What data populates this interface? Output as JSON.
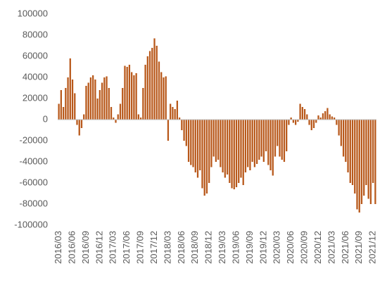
{
  "chart_data": {
    "type": "bar",
    "color": "#b8581a",
    "categories": [
      "2016/03",
      null,
      null,
      null,
      null,
      null,
      "2016/06",
      null,
      null,
      null,
      null,
      null,
      "2016/09",
      null,
      null,
      null,
      null,
      null,
      "2016/12",
      null,
      null,
      null,
      null,
      null,
      "2017/03",
      null,
      null,
      null,
      null,
      null,
      "2017/06",
      null,
      null,
      null,
      null,
      null,
      "2017/09",
      null,
      null,
      null,
      null,
      null,
      "2017/12",
      null,
      null,
      null,
      null,
      null,
      "2018/03",
      null,
      null,
      null,
      null,
      null,
      "2018/06",
      null,
      null,
      null,
      null,
      null,
      "2018/09",
      null,
      null,
      null,
      null,
      null,
      "2018/12",
      null,
      null,
      null,
      null,
      null,
      "2019/03",
      null,
      null,
      null,
      null,
      null,
      "2019/06",
      null,
      null,
      null,
      null,
      null,
      "2019/09",
      null,
      null,
      null,
      null,
      null,
      "2019/12",
      null,
      null,
      null,
      null,
      null,
      "2020/03",
      null,
      null,
      null,
      null,
      null,
      "2020/06",
      null,
      null,
      null,
      null,
      null,
      "2020/09",
      null,
      null,
      null,
      null,
      null,
      "2020/12",
      null,
      null,
      null,
      null,
      null,
      "2021/03",
      null,
      null,
      null,
      null,
      null,
      "2021/06",
      null,
      null,
      null,
      null,
      null,
      "2021/09",
      null,
      null,
      null,
      null,
      null,
      "2021/12",
      null
    ],
    "values": [
      15000,
      28000,
      12000,
      30000,
      40000,
      58000,
      38000,
      25000,
      -5000,
      -15000,
      -8000,
      5000,
      32000,
      35000,
      40000,
      42000,
      38000,
      20000,
      28000,
      35000,
      40000,
      41000,
      30000,
      12000,
      2000,
      -3000,
      5000,
      15000,
      30000,
      51000,
      50000,
      52000,
      45000,
      42000,
      44000,
      5000,
      2000,
      30000,
      52000,
      60000,
      65000,
      68000,
      77000,
      70000,
      55000,
      45000,
      40000,
      41000,
      -20000,
      15000,
      12000,
      10000,
      18000,
      2000,
      -10000,
      -20000,
      -25000,
      -40000,
      -43000,
      -45000,
      -50000,
      -55000,
      -48000,
      -65000,
      -72000,
      -70000,
      -60000,
      -45000,
      -35000,
      -40000,
      -38000,
      -45000,
      -50000,
      -55000,
      -52000,
      -60000,
      -65000,
      -66000,
      -64000,
      -60000,
      -55000,
      -62000,
      -50000,
      -45000,
      -48000,
      -40000,
      -45000,
      -42000,
      -38000,
      -35000,
      -40000,
      -30000,
      -43000,
      -48000,
      -53000,
      -35000,
      -25000,
      -35000,
      -38000,
      -40000,
      -30000,
      -5000,
      2000,
      -3000,
      -5000,
      -2000,
      15000,
      12000,
      10000,
      5000,
      -5000,
      -10000,
      -8000,
      -3000,
      4000,
      2000,
      6000,
      8000,
      11000,
      5000,
      3000,
      2000,
      -5000,
      -15000,
      -25000,
      -35000,
      -40000,
      -50000,
      -60000,
      -62000,
      -70000,
      -85000,
      -88000,
      -80000,
      -72000,
      -62000,
      -75000,
      -80000,
      -60000,
      -80000
    ],
    "ylim": [
      -100000,
      100000
    ],
    "yticks": [
      -100000,
      -80000,
      -60000,
      -40000,
      -20000,
      0,
      20000,
      40000,
      60000,
      80000,
      100000
    ],
    "grid": false
  }
}
